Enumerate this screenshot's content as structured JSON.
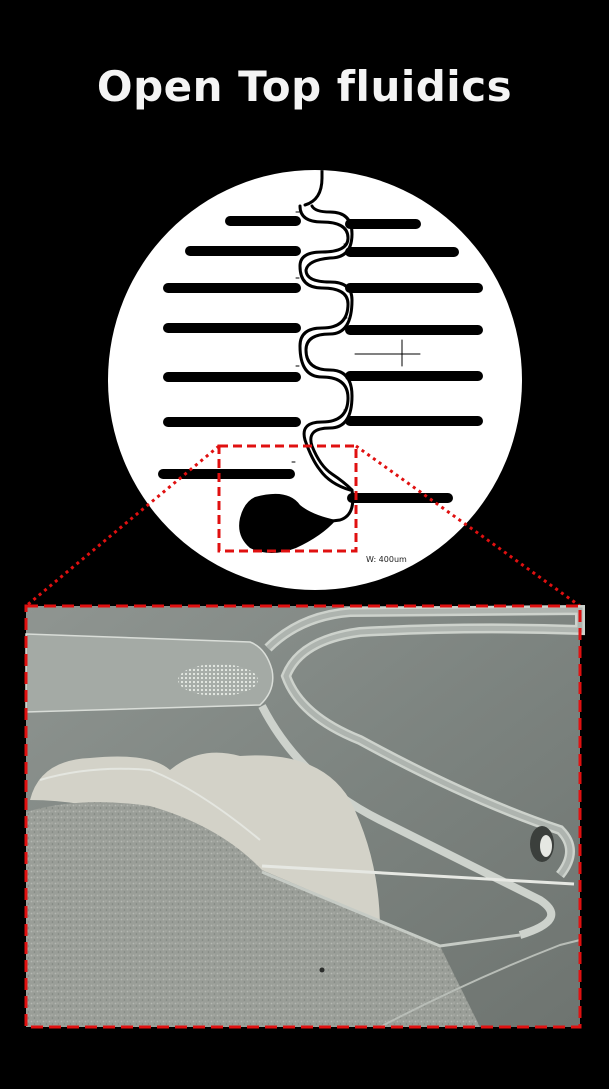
{
  "page": {
    "title": "Open Top fluidics"
  },
  "schematic": {
    "scale_label": "W: 400um"
  },
  "colors": {
    "background": "#000000",
    "title": "#f4f4f4",
    "disc": "#ffffff",
    "channels": "#000000",
    "highlight_box": "#e01010"
  }
}
